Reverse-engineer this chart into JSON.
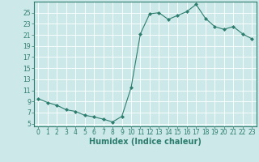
{
  "x": [
    0,
    1,
    2,
    3,
    4,
    5,
    6,
    7,
    8,
    9,
    10,
    11,
    12,
    13,
    14,
    15,
    16,
    17,
    18,
    19,
    20,
    21,
    22,
    23
  ],
  "y": [
    9.5,
    8.8,
    8.3,
    7.5,
    7.2,
    6.5,
    6.2,
    5.8,
    5.3,
    6.3,
    11.5,
    21.2,
    24.8,
    25.0,
    23.8,
    24.5,
    25.2,
    26.5,
    24.0,
    22.5,
    22.0,
    22.5,
    21.2,
    20.3
  ],
  "line_color": "#2d7d6e",
  "marker": "D",
  "marker_size": 2.0,
  "bg_color": "#cce8e8",
  "grid_color": "#ffffff",
  "xlabel": "Humidex (Indice chaleur)",
  "xlim": [
    -0.5,
    23.5
  ],
  "ylim": [
    4.5,
    27
  ],
  "yticks": [
    5,
    7,
    9,
    11,
    13,
    15,
    17,
    19,
    21,
    23,
    25
  ],
  "xticks": [
    0,
    1,
    2,
    3,
    4,
    5,
    6,
    7,
    8,
    9,
    10,
    11,
    12,
    13,
    14,
    15,
    16,
    17,
    18,
    19,
    20,
    21,
    22,
    23
  ],
  "tick_label_fontsize": 5.5,
  "xlabel_fontsize": 7.0,
  "axis_color": "#2d7d6e",
  "linewidth": 0.8
}
